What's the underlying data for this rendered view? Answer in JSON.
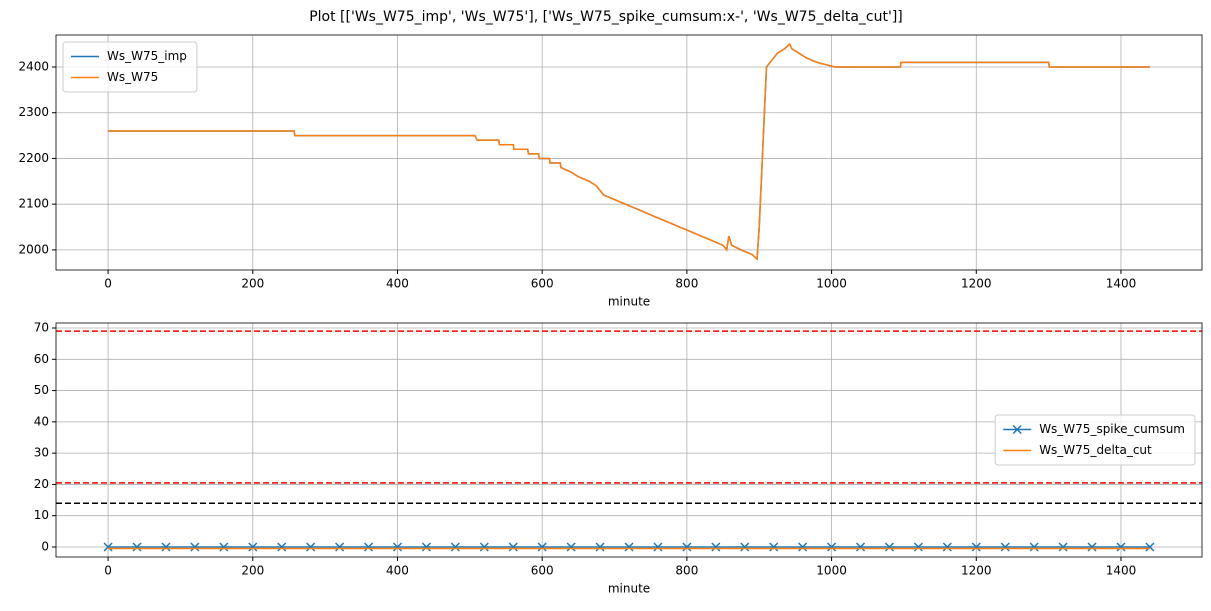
{
  "title": "Plot [['Ws_W75_imp', 'Ws_W75'], ['Ws_W75_spike_cumsum:x-', 'Ws_W75_delta_cut']]",
  "chart_data": [
    {
      "type": "line",
      "xlabel": "minute",
      "xlim": [
        -72,
        1512
      ],
      "xticks": [
        0,
        200,
        400,
        600,
        800,
        1000,
        1200,
        1400
      ],
      "ylim": [
        1956,
        2470
      ],
      "yticks": [
        2000,
        2100,
        2200,
        2300,
        2400
      ],
      "grid": true,
      "legend": "upper left",
      "series": [
        {
          "name": "Ws_W75_imp",
          "color": "#1f77b4",
          "marker": "none",
          "x": [
            0,
            257,
            258,
            507,
            510,
            540,
            541,
            560,
            561,
            580,
            581,
            595,
            596,
            610,
            611,
            625,
            626,
            640,
            650,
            665,
            675,
            685,
            700,
            715,
            730,
            745,
            760,
            775,
            790,
            805,
            820,
            835,
            850,
            855,
            858,
            862,
            875,
            890,
            897,
            900,
            910,
            915,
            925,
            935,
            942,
            945,
            955,
            965,
            980,
            1005,
            1095,
            1096,
            1300,
            1301,
            1360,
            1440
          ],
          "values": [
            2260,
            2260,
            2250,
            2250,
            2240,
            2240,
            2230,
            2230,
            2220,
            2220,
            2210,
            2210,
            2200,
            2200,
            2190,
            2190,
            2180,
            2170,
            2160,
            2150,
            2140,
            2120,
            2110,
            2100,
            2090,
            2080,
            2070,
            2060,
            2050,
            2040,
            2030,
            2020,
            2010,
            2000,
            2030,
            2010,
            2000,
            1990,
            1980,
            2050,
            2400,
            2410,
            2430,
            2440,
            2450,
            2440,
            2430,
            2420,
            2410,
            2400,
            2400,
            2410,
            2410,
            2400,
            2400,
            2400
          ]
        },
        {
          "name": "Ws_W75",
          "color": "#ff7f0e",
          "marker": "none",
          "x": [
            0,
            257,
            258,
            507,
            510,
            540,
            541,
            560,
            561,
            580,
            581,
            595,
            596,
            610,
            611,
            625,
            626,
            640,
            650,
            665,
            675,
            685,
            700,
            715,
            730,
            745,
            760,
            775,
            790,
            805,
            820,
            835,
            850,
            855,
            858,
            862,
            875,
            890,
            897,
            900,
            910,
            915,
            925,
            935,
            942,
            945,
            955,
            965,
            980,
            1005,
            1095,
            1096,
            1300,
            1301,
            1360,
            1440
          ],
          "values": [
            2260,
            2260,
            2250,
            2250,
            2240,
            2240,
            2230,
            2230,
            2220,
            2220,
            2210,
            2210,
            2200,
            2200,
            2190,
            2190,
            2180,
            2170,
            2160,
            2150,
            2140,
            2120,
            2110,
            2100,
            2090,
            2080,
            2070,
            2060,
            2050,
            2040,
            2030,
            2020,
            2010,
            2000,
            2030,
            2010,
            2000,
            1990,
            1980,
            2050,
            2400,
            2410,
            2430,
            2440,
            2450,
            2440,
            2430,
            2420,
            2410,
            2400,
            2400,
            2410,
            2410,
            2400,
            2400,
            2400
          ]
        }
      ]
    },
    {
      "type": "line",
      "xlabel": "minute",
      "xlim": [
        -72,
        1512
      ],
      "xticks": [
        0,
        200,
        400,
        600,
        800,
        1000,
        1200,
        1400
      ],
      "ylim": [
        -3.2,
        71.6
      ],
      "yticks": [
        0,
        10,
        20,
        30,
        40,
        50,
        60,
        70
      ],
      "grid": true,
      "legend": "center right",
      "hlines": [
        {
          "value": 69,
          "color": "red"
        },
        {
          "value": 20.5,
          "color": "red"
        },
        {
          "value": 14,
          "color": "black"
        }
      ],
      "series": [
        {
          "name": "Ws_W75_spike_cumsum",
          "color": "#1f77b4",
          "marker": "x",
          "x": [
            0,
            40,
            80,
            120,
            160,
            200,
            240,
            280,
            320,
            360,
            400,
            440,
            480,
            520,
            560,
            600,
            640,
            680,
            720,
            760,
            800,
            840,
            880,
            920,
            960,
            1000,
            1040,
            1080,
            1120,
            1160,
            1200,
            1240,
            1280,
            1320,
            1360,
            1400,
            1440
          ],
          "values": [
            0,
            0,
            0,
            0,
            0,
            0,
            0,
            0,
            0,
            0,
            0,
            0,
            0,
            0,
            0,
            0,
            0,
            0,
            0,
            0,
            0,
            0,
            0,
            0,
            0,
            0,
            0,
            0,
            0,
            0,
            0,
            0,
            0,
            0,
            0,
            0,
            0
          ]
        },
        {
          "name": "Ws_W75_delta_cut",
          "color": "#ff7f0e",
          "marker": "none",
          "x": [
            0,
            1440
          ],
          "values": [
            -0.5,
            -0.5
          ]
        }
      ]
    }
  ]
}
